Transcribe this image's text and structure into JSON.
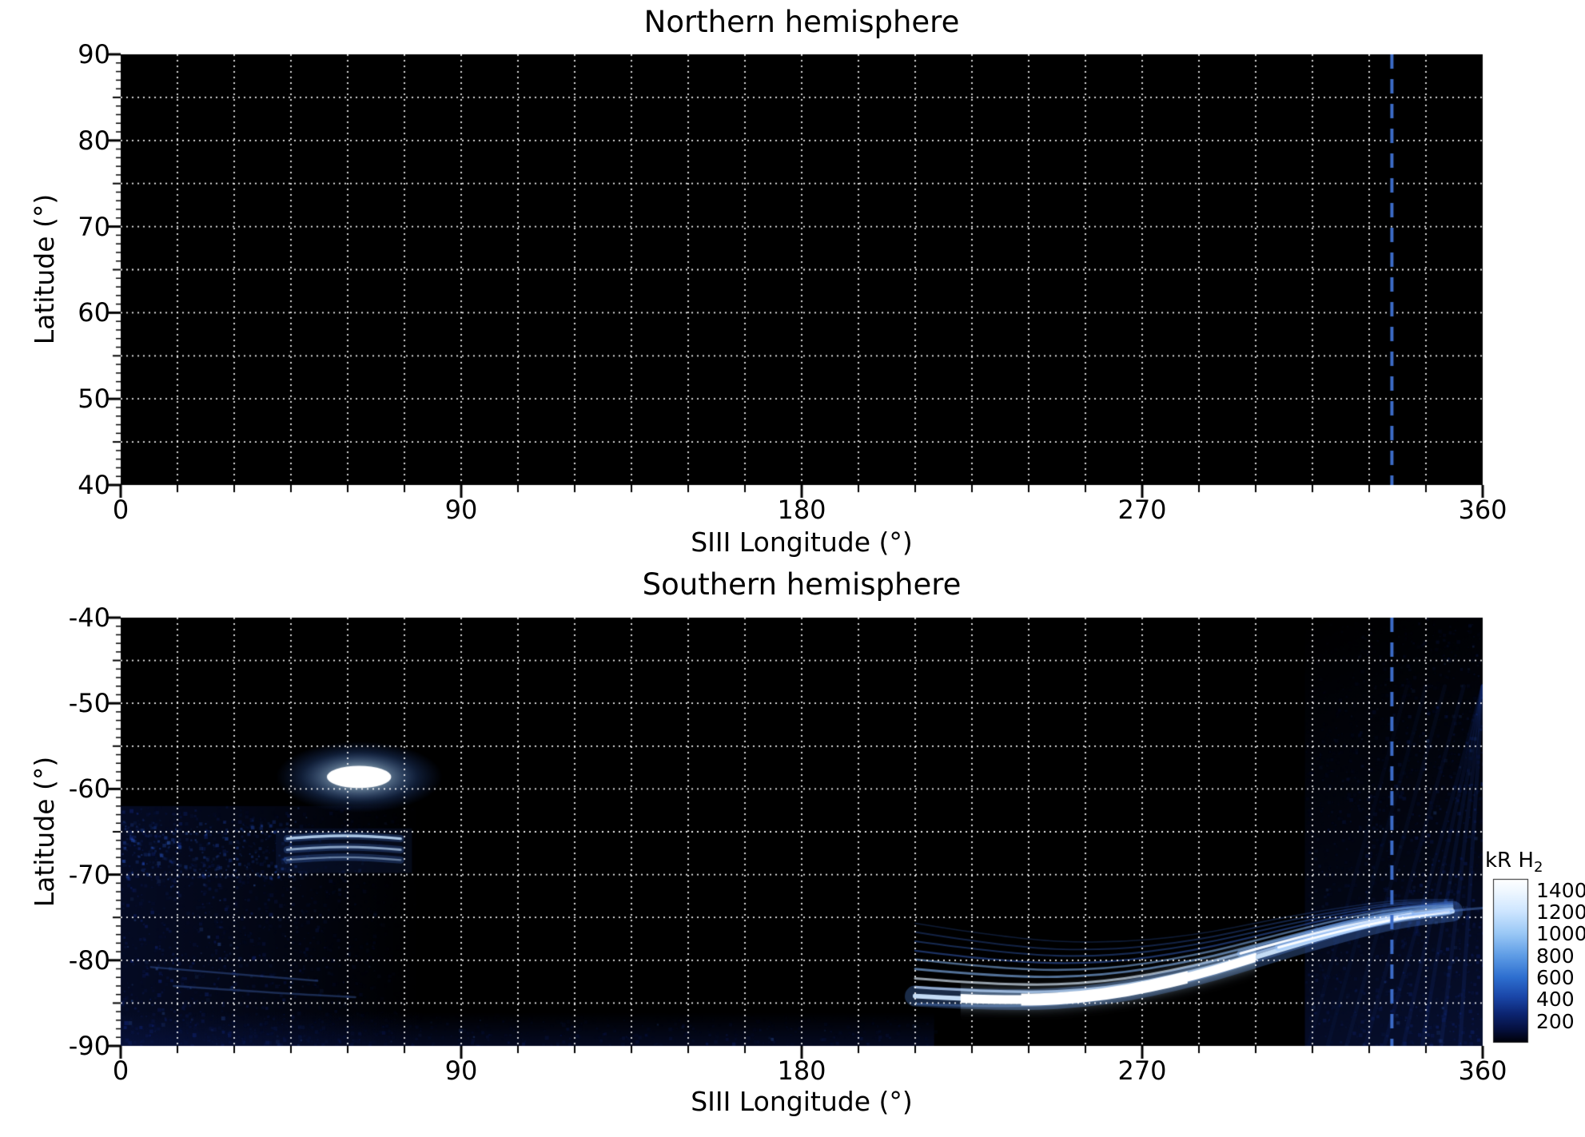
{
  "figure": {
    "background": "#ffffff",
    "text_color": "#000000"
  },
  "titles": {
    "top": "Northern hemisphere",
    "bottom": "Southern hemisphere"
  },
  "axes": {
    "xlabel": "SIII Longitude (°)",
    "ylabel": "Latitude (°)",
    "xticks": [
      0,
      90,
      180,
      270,
      360
    ],
    "top_yticks": [
      90,
      80,
      70,
      60,
      50,
      40
    ],
    "bottom_yticks": [
      -40,
      -50,
      -60,
      -70,
      -80,
      -90
    ]
  },
  "grid": {
    "color": "#ffffff",
    "style": "dotted",
    "x_step_deg": 15,
    "y_step_deg": 5
  },
  "reference_line": {
    "longitude_deg": 336,
    "color": "#3c6cc8",
    "style": "dashed"
  },
  "colorbar": {
    "title_main": "kR H",
    "title_sub": "2",
    "ticks": [
      1400,
      1200,
      1000,
      800,
      600,
      400,
      200
    ],
    "vmin": 0,
    "vmax": 1500,
    "stops": [
      [
        1500,
        "#ffffff"
      ],
      [
        1380,
        "#eef7ff"
      ],
      [
        1200,
        "#cde5ff"
      ],
      [
        1000,
        "#9ac8f6"
      ],
      [
        800,
        "#5f9de6"
      ],
      [
        600,
        "#2e6fd0"
      ],
      [
        420,
        "#1a46a8"
      ],
      [
        260,
        "#0c2470"
      ],
      [
        120,
        "#05103e"
      ],
      [
        0,
        "#000006"
      ]
    ]
  },
  "chart_data": {
    "type": "heatmap",
    "x_axis_label": "SIII Longitude (°)",
    "y_axis_label": "Latitude (°)",
    "x_range": [
      0,
      360
    ],
    "x_ticks": [
      0,
      90,
      180,
      270,
      360
    ],
    "grid_step_deg": {
      "x": 15,
      "y": 5
    },
    "reference_longitude_deg": 336,
    "colorbar": {
      "label": "kR H2",
      "ticks": [
        1400,
        1200,
        1000,
        800,
        600,
        400,
        200
      ],
      "range": [
        0,
        1500
      ]
    },
    "panels": [
      {
        "title": "Northern hemisphere",
        "lat_range": [
          40,
          90
        ],
        "lat_ticks": [
          90,
          80,
          70,
          60,
          50,
          40
        ],
        "features": []
      },
      {
        "title": "Southern hemisphere",
        "lat_range": [
          -90,
          -40
        ],
        "lat_ticks": [
          -40,
          -50,
          -60,
          -70,
          -80,
          -90
        ],
        "features": [
          {
            "id": "diffuse-dusk-patch",
            "kind": "diffuse",
            "lon_span": [
              0,
              80
            ],
            "lat_span": [
              -90,
              -62
            ],
            "peak_kR": 260
          },
          {
            "id": "bottom-band",
            "kind": "diffuse",
            "lon_span": [
              0,
              215
            ],
            "lat_span": [
              -90,
              -86
            ],
            "peak_kR": 150
          },
          {
            "id": "dawn-fan-haze",
            "kind": "diffuse",
            "lon_span": [
              313,
              360
            ],
            "lat_span": [
              -90,
              -40
            ],
            "peak_kR": 200
          },
          {
            "id": "faint-left-arcs",
            "kind": "faint-arc-set",
            "arcs": [
              [
                [
                  8,
                  -80.8
                ],
                [
                  30,
                  -81.6
                ],
                [
                  52,
                  -82.4
                ]
              ],
              [
                [
                  14,
                  -83.0
                ],
                [
                  40,
                  -83.8
                ],
                [
                  62,
                  -84.3
                ]
              ]
            ],
            "peak_kR": 200
          },
          {
            "id": "secondary-arcs",
            "kind": "arc-set",
            "lon_span": [
              44,
              74
            ],
            "lats": [
              -65.8,
              -67.1,
              -68.3
            ],
            "peak_kR": 450
          },
          {
            "id": "bright-cusp-spot",
            "kind": "ellipse",
            "center_lon": 63,
            "center_lat": -58.6,
            "lon_radius": 8.5,
            "lat_radius": 1.3,
            "peak_kR": 1500
          },
          {
            "id": "main-auroral-arc",
            "kind": "arc-bundle",
            "centerline": [
              [
                210,
                -84.2
              ],
              [
                235,
                -84.8
              ],
              [
                260,
                -84.1
              ],
              [
                284,
                -81.9
              ],
              [
                305,
                -79.0
              ],
              [
                323,
                -76.6
              ],
              [
                338,
                -75.0
              ],
              [
                352,
                -74.3
              ]
            ],
            "n_striations": 9,
            "spread_deg_at_start": 8.5,
            "spread_deg_at_end": 1.4,
            "bright_core_lon_span": [
              222,
              300
            ],
            "peak_kR": 1500
          },
          {
            "id": "crossing-bright-arcs",
            "kind": "bright-arcs",
            "arcs": [
              [
                [
                  296,
                  -79.2
                ],
                [
                  318,
                  -76.5
                ],
                [
                  341,
                  -74.6
                ]
              ],
              [
                [
                  306,
                  -78.5
                ],
                [
                  329,
                  -75.7
                ],
                [
                  351,
                  -74.3
                ]
              ]
            ],
            "peak_kR": 1200
          },
          {
            "id": "faint-tail",
            "kind": "faint-arc",
            "points": [
              [
                338,
                -74.9
              ],
              [
                352,
                -74.2
              ],
              [
                360,
                -73.9
              ]
            ],
            "peak_kR": 300
          }
        ]
      }
    ]
  }
}
